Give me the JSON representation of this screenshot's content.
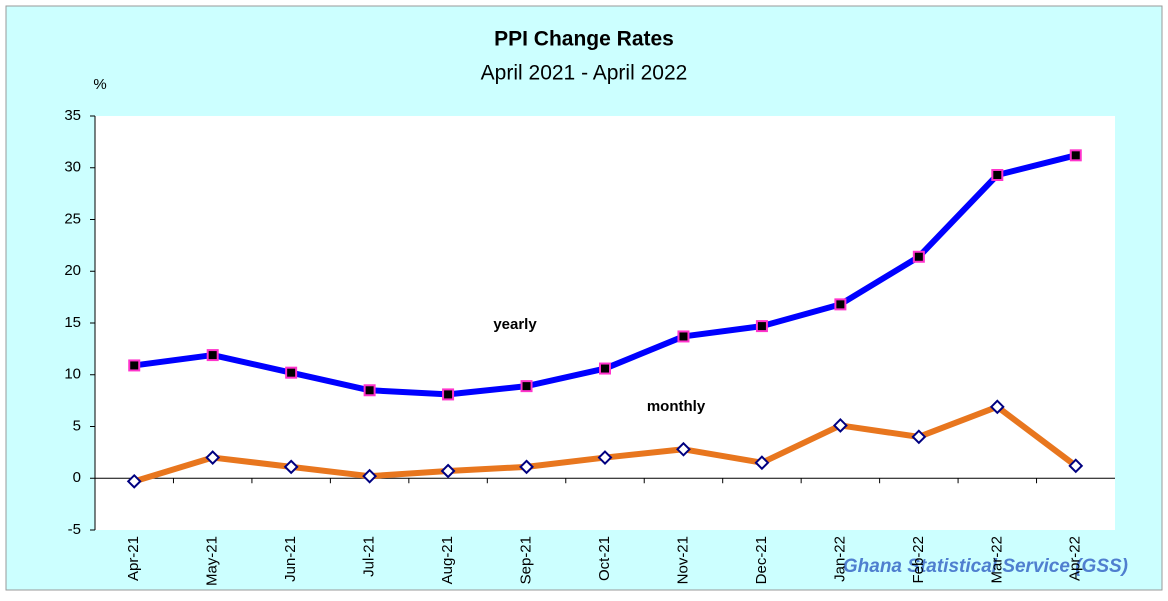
{
  "chart_data": {
    "type": "line",
    "title": "PPI Change Rates",
    "subtitle": "April 2021 - April 2022",
    "y_axis_label": "%",
    "source": "Ghana Statistical Service (GSS)",
    "annotations": [
      "yearly",
      "monthly"
    ],
    "categories": [
      "Apr-21",
      "May-21",
      "Jun-21",
      "Jul-21",
      "Aug-21",
      "Sep-21",
      "Oct-21",
      "Nov-21",
      "Dec-21",
      "Jan-22",
      "Feb-22",
      "Mar-22",
      "Apr-22"
    ],
    "series": [
      {
        "name": "yearly",
        "color": "#0000ff",
        "marker": "square",
        "marker_fill": "#000000",
        "marker_stroke": "#ff33cc",
        "values": [
          10.9,
          11.9,
          10.2,
          8.5,
          8.1,
          8.9,
          10.6,
          13.7,
          14.7,
          16.8,
          21.4,
          29.3,
          31.2
        ]
      },
      {
        "name": "monthly",
        "color": "#e8761e",
        "marker": "diamond",
        "marker_fill": "#ffffff",
        "marker_stroke": "#000080",
        "values": [
          -0.3,
          2.0,
          1.1,
          0.2,
          0.7,
          1.1,
          2.0,
          2.8,
          1.5,
          5.1,
          4.0,
          6.9,
          1.2
        ]
      }
    ],
    "ylim": [
      -5,
      35
    ],
    "yticks": [
      -5,
      0,
      5,
      10,
      15,
      20,
      25,
      30,
      35
    ],
    "grid": false
  }
}
